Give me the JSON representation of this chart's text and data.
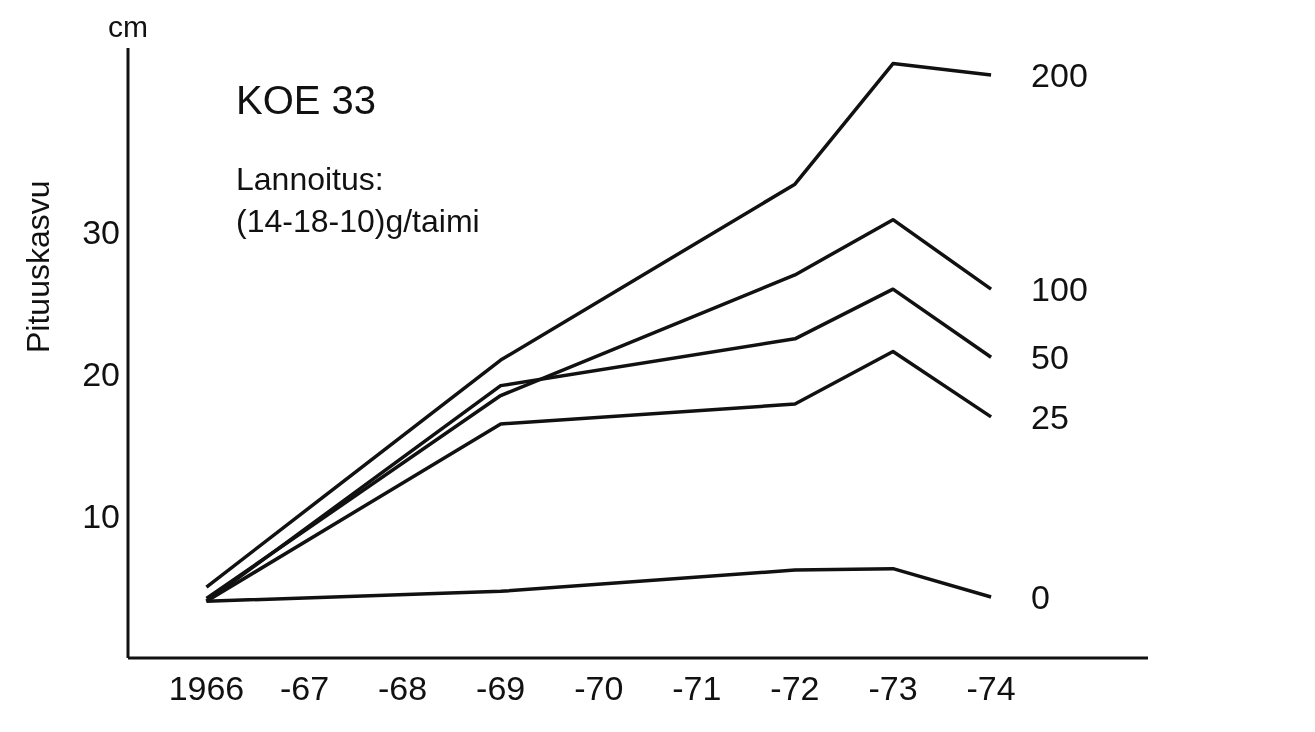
{
  "chart_data": {
    "type": "line",
    "title": "KOE 33",
    "ylabel": "Pituuskasvu",
    "annotations": [
      "cm",
      "Lannoitus:",
      "(14-18-10)g/taimi"
    ],
    "categories": [
      "1966",
      "-67",
      "-68",
      "-69",
      "-70",
      "-71",
      "-72",
      "-73",
      "-74"
    ],
    "ylim": [
      0,
      43
    ],
    "yticks": [
      10,
      20,
      30
    ],
    "grid": false,
    "legend": false,
    "marker": "none",
    "line_style": "solid",
    "series": [
      {
        "name": "200",
        "color": "#111111",
        "values": [
          5.0,
          null,
          null,
          21.0,
          null,
          null,
          33.4,
          41.9,
          41.1
        ]
      },
      {
        "name": "100",
        "color": "#111111",
        "values": [
          4.2,
          null,
          null,
          18.5,
          null,
          null,
          27.0,
          30.9,
          26.0
        ]
      },
      {
        "name": "50",
        "color": "#111111",
        "values": [
          4.0,
          null,
          null,
          19.2,
          null,
          null,
          22.5,
          26.0,
          21.2
        ]
      },
      {
        "name": "25",
        "color": "#111111",
        "values": [
          4.0,
          null,
          null,
          16.5,
          null,
          null,
          17.9,
          21.6,
          17.0
        ]
      },
      {
        "name": "0",
        "color": "#111111",
        "values": [
          4.0,
          null,
          null,
          4.7,
          null,
          null,
          6.2,
          6.3,
          4.3
        ]
      }
    ]
  }
}
